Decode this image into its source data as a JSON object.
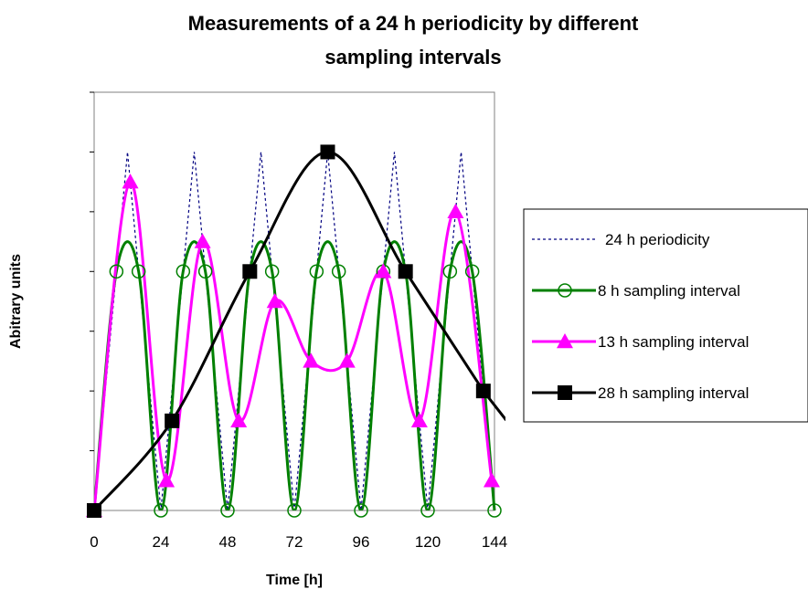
{
  "chart_data": {
    "type": "line",
    "title_lines": [
      "Measurements of a 24 h periodicity by different",
      "sampling intervals"
    ],
    "xlabel": "Time [h]",
    "ylabel": "Abitrary units",
    "xlim": [
      0,
      144
    ],
    "ylim": [
      0,
      7
    ],
    "x_ticks": [
      0,
      24,
      48,
      72,
      96,
      120,
      144
    ],
    "x_tick_labels": [
      "0",
      "24",
      "48",
      "72",
      "96",
      "120",
      "144"
    ],
    "y_ticks": [
      0,
      1,
      2,
      3,
      4,
      5,
      6,
      7
    ],
    "grid": false,
    "legend_position": "right",
    "series": [
      {
        "name": "24 h periodicity",
        "style": "dotted",
        "color": "#000080",
        "marker": "none",
        "x": [
          0,
          12,
          24,
          36,
          48,
          60,
          72,
          84,
          96,
          108,
          120,
          132,
          144
        ],
        "y": [
          0,
          6,
          0,
          6,
          0,
          6,
          0,
          6,
          0,
          6,
          0,
          6,
          0
        ]
      },
      {
        "name": "8 h sampling interval",
        "style": "solid",
        "color": "#008000",
        "marker": "circle-open",
        "x": [
          0,
          8,
          16,
          24,
          32,
          40,
          48,
          56,
          64,
          72,
          80,
          88,
          96,
          104,
          112,
          120,
          128,
          136,
          144
        ],
        "y": [
          0,
          4,
          4,
          0,
          4,
          4,
          0,
          4,
          4,
          0,
          4,
          4,
          0,
          4,
          4,
          0,
          4,
          4,
          0
        ]
      },
      {
        "name": "13 h sampling interval",
        "style": "solid",
        "color": "#FF00FF",
        "marker": "triangle",
        "x": [
          0,
          13,
          26,
          39,
          52,
          65,
          78,
          91,
          104,
          117,
          130,
          143
        ],
        "y": [
          0,
          5.5,
          0.5,
          4.5,
          1.5,
          3.5,
          2.5,
          2.5,
          4,
          1.5,
          5,
          0.5
        ]
      },
      {
        "name": "28 h sampling interval",
        "style": "solid",
        "color": "#000000",
        "marker": "square",
        "x": [
          0,
          28,
          56,
          84,
          112,
          140
        ],
        "y": [
          0,
          1.5,
          4,
          6,
          4,
          2
        ]
      }
    ]
  }
}
